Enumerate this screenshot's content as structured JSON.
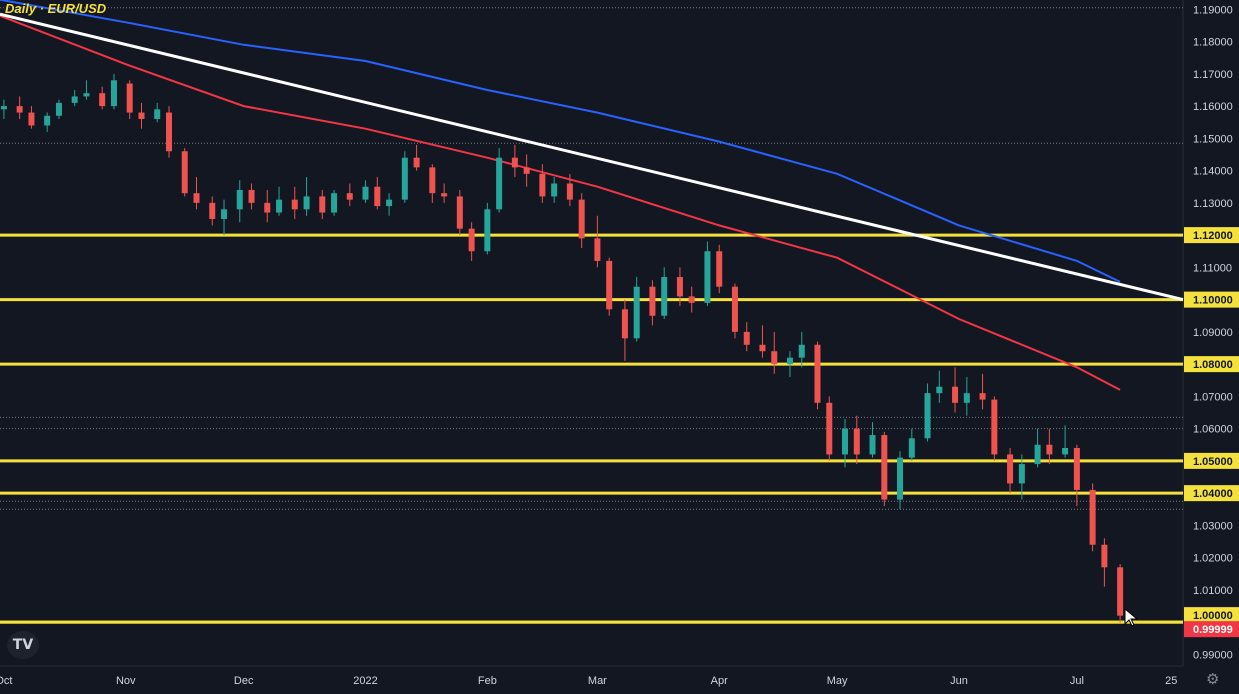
{
  "title": "Daily · EUR/USD",
  "icons": {
    "logo": "tradingview-logo-icon",
    "settings": "gear-icon",
    "cursor": "mouse-pointer-icon"
  },
  "logo_text": "TV",
  "settings_glyph": "⚙",
  "colors": {
    "background": "#131722",
    "up": "#26a69a",
    "down": "#ef5350",
    "ma_blue": "#2962ff",
    "ma_red": "#f23645",
    "trendline": "#ffffff",
    "level": "#f5e13b",
    "axis_text": "#d1d4dc",
    "price_tag": "#f23645"
  },
  "chart_data": {
    "type": "candlestick",
    "title": "Daily · EUR/USD",
    "ylim": [
      0.9864,
      1.1929
    ],
    "y_tick_labels": [
      "1.19000",
      "1.18000",
      "1.17000",
      "1.16000",
      "1.15000",
      "1.14000",
      "1.13000",
      "1.11000",
      "1.09000",
      "1.07000",
      "1.06000",
      "1.03000",
      "1.02000",
      "1.01000",
      "0.99000"
    ],
    "y_ticks": [
      1.19,
      1.18,
      1.17,
      1.16,
      1.15,
      1.14,
      1.13,
      1.11,
      1.09,
      1.07,
      1.06,
      1.03,
      1.02,
      1.01,
      0.99
    ],
    "x_tick_labels": [
      "Oct",
      "Nov",
      "Dec",
      "2022",
      "Feb",
      "Mar",
      "Apr",
      "May",
      "Jun",
      "Jul",
      "25"
    ],
    "x_ticks": [
      "2021-10-01",
      "2021-11-01",
      "2021-12-01",
      "2022-01-01",
      "2022-02-01",
      "2022-03-01",
      "2022-04-01",
      "2022-05-01",
      "2022-06-01",
      "2022-07-01",
      "2022-07-25"
    ],
    "x_range": [
      "2021-09-30",
      "2022-07-28"
    ],
    "horizontal_levels": [
      {
        "price": 1.12,
        "label": "1.12000"
      },
      {
        "price": 1.1,
        "label": "1.10000"
      },
      {
        "price": 1.08,
        "label": "1.08000"
      },
      {
        "price": 1.05,
        "label": "1.05000"
      },
      {
        "price": 1.04,
        "label": "1.04000"
      },
      {
        "price": 1.0,
        "label": "1.00000"
      },
      {
        "price": 0.99999,
        "label": "0.99999"
      }
    ],
    "last_price": {
      "price": 0.99999,
      "label": "0.99999"
    },
    "dotted_levels": [
      1.1905,
      1.1485,
      1.0635,
      1.06,
      1.0375,
      1.035
    ],
    "trendline": {
      "points": [
        [
          "2021-09-30",
          1.1885
        ],
        [
          "2022-07-28",
          1.1
        ]
      ]
    },
    "ma_long": {
      "points": [
        [
          "2021-09-30",
          1.193
        ],
        [
          "2021-11-01",
          1.186
        ],
        [
          "2021-12-01",
          1.179
        ],
        [
          "2022-01-01",
          1.174
        ],
        [
          "2022-02-01",
          1.165
        ],
        [
          "2022-03-01",
          1.158
        ],
        [
          "2022-04-01",
          1.149
        ],
        [
          "2022-05-01",
          1.139
        ],
        [
          "2022-06-01",
          1.123
        ],
        [
          "2022-07-01",
          1.112
        ],
        [
          "2022-07-12",
          1.1055
        ]
      ]
    },
    "ma_short": {
      "points": [
        [
          "2021-09-30",
          1.188
        ],
        [
          "2021-11-01",
          1.173
        ],
        [
          "2021-12-01",
          1.16
        ],
        [
          "2022-01-01",
          1.153
        ],
        [
          "2022-02-01",
          1.144
        ],
        [
          "2022-03-01",
          1.135
        ],
        [
          "2022-04-01",
          1.123
        ],
        [
          "2022-05-01",
          1.113
        ],
        [
          "2022-06-01",
          1.094
        ],
        [
          "2022-07-01",
          1.079
        ],
        [
          "2022-07-12",
          1.072
        ]
      ]
    },
    "candles": [
      [
        "2021-10-01",
        1.159,
        1.162,
        1.156,
        1.16
      ],
      [
        "2021-10-05",
        1.16,
        1.163,
        1.156,
        1.158
      ],
      [
        "2021-10-08",
        1.158,
        1.16,
        1.153,
        1.154
      ],
      [
        "2021-10-12",
        1.154,
        1.158,
        1.152,
        1.157
      ],
      [
        "2021-10-15",
        1.157,
        1.162,
        1.156,
        1.161
      ],
      [
        "2021-10-19",
        1.161,
        1.165,
        1.16,
        1.163
      ],
      [
        "2021-10-22",
        1.163,
        1.168,
        1.162,
        1.164
      ],
      [
        "2021-10-26",
        1.164,
        1.166,
        1.159,
        1.16
      ],
      [
        "2021-10-29",
        1.16,
        1.17,
        1.159,
        1.168
      ],
      [
        "2021-11-02",
        1.167,
        1.168,
        1.156,
        1.158
      ],
      [
        "2021-11-05",
        1.158,
        1.161,
        1.153,
        1.156
      ],
      [
        "2021-11-09",
        1.156,
        1.161,
        1.155,
        1.159
      ],
      [
        "2021-11-12",
        1.158,
        1.16,
        1.144,
        1.146
      ],
      [
        "2021-11-16",
        1.146,
        1.147,
        1.132,
        1.133
      ],
      [
        "2021-11-19",
        1.133,
        1.138,
        1.128,
        1.13
      ],
      [
        "2021-11-23",
        1.13,
        1.132,
        1.123,
        1.125
      ],
      [
        "2021-11-26",
        1.125,
        1.131,
        1.12,
        1.128
      ],
      [
        "2021-11-30",
        1.128,
        1.137,
        1.124,
        1.134
      ],
      [
        "2021-12-03",
        1.134,
        1.136,
        1.128,
        1.13
      ],
      [
        "2021-12-07",
        1.13,
        1.134,
        1.124,
        1.127
      ],
      [
        "2021-12-10",
        1.127,
        1.135,
        1.126,
        1.131
      ],
      [
        "2021-12-14",
        1.131,
        1.135,
        1.125,
        1.128
      ],
      [
        "2021-12-17",
        1.128,
        1.138,
        1.126,
        1.132
      ],
      [
        "2021-12-21",
        1.132,
        1.134,
        1.125,
        1.127
      ],
      [
        "2021-12-24",
        1.127,
        1.134,
        1.126,
        1.133
      ],
      [
        "2021-12-28",
        1.133,
        1.136,
        1.129,
        1.131
      ],
      [
        "2022-01-01",
        1.131,
        1.137,
        1.13,
        1.135
      ],
      [
        "2022-01-04",
        1.135,
        1.138,
        1.128,
        1.129
      ],
      [
        "2022-01-07",
        1.129,
        1.133,
        1.126,
        1.131
      ],
      [
        "2022-01-11",
        1.131,
        1.146,
        1.13,
        1.144
      ],
      [
        "2022-01-14",
        1.144,
        1.148,
        1.14,
        1.141
      ],
      [
        "2022-01-18",
        1.141,
        1.142,
        1.13,
        1.133
      ],
      [
        "2022-01-21",
        1.133,
        1.136,
        1.13,
        1.132
      ],
      [
        "2022-01-25",
        1.132,
        1.134,
        1.12,
        1.122
      ],
      [
        "2022-01-28",
        1.122,
        1.124,
        1.112,
        1.115
      ],
      [
        "2022-02-01",
        1.115,
        1.13,
        1.114,
        1.128
      ],
      [
        "2022-02-04",
        1.128,
        1.147,
        1.127,
        1.144
      ],
      [
        "2022-02-08",
        1.144,
        1.148,
        1.138,
        1.141
      ],
      [
        "2022-02-11",
        1.141,
        1.145,
        1.135,
        1.139
      ],
      [
        "2022-02-15",
        1.139,
        1.142,
        1.13,
        1.132
      ],
      [
        "2022-02-18",
        1.132,
        1.138,
        1.13,
        1.136
      ],
      [
        "2022-02-22",
        1.136,
        1.139,
        1.129,
        1.131
      ],
      [
        "2022-02-25",
        1.131,
        1.133,
        1.116,
        1.119
      ],
      [
        "2022-03-01",
        1.119,
        1.126,
        1.11,
        1.112
      ],
      [
        "2022-03-04",
        1.112,
        1.113,
        1.095,
        1.097
      ],
      [
        "2022-03-08",
        1.097,
        1.1,
        1.081,
        1.088
      ],
      [
        "2022-03-11",
        1.088,
        1.107,
        1.087,
        1.104
      ],
      [
        "2022-03-15",
        1.104,
        1.106,
        1.092,
        1.095
      ],
      [
        "2022-03-18",
        1.095,
        1.11,
        1.094,
        1.107
      ],
      [
        "2022-03-22",
        1.107,
        1.11,
        1.098,
        1.101
      ],
      [
        "2022-03-25",
        1.101,
        1.104,
        1.096,
        1.099
      ],
      [
        "2022-03-29",
        1.099,
        1.118,
        1.098,
        1.115
      ],
      [
        "2022-04-01",
        1.115,
        1.117,
        1.102,
        1.104
      ],
      [
        "2022-04-05",
        1.104,
        1.105,
        1.088,
        1.09
      ],
      [
        "2022-04-08",
        1.09,
        1.093,
        1.084,
        1.086
      ],
      [
        "2022-04-12",
        1.086,
        1.092,
        1.082,
        1.084
      ],
      [
        "2022-04-15",
        1.084,
        1.09,
        1.077,
        1.08
      ],
      [
        "2022-04-19",
        1.08,
        1.084,
        1.076,
        1.082
      ],
      [
        "2022-04-22",
        1.082,
        1.09,
        1.079,
        1.086
      ],
      [
        "2022-04-26",
        1.086,
        1.087,
        1.066,
        1.068
      ],
      [
        "2022-04-29",
        1.068,
        1.07,
        1.05,
        1.052
      ],
      [
        "2022-05-03",
        1.052,
        1.063,
        1.048,
        1.06
      ],
      [
        "2022-05-06",
        1.06,
        1.064,
        1.049,
        1.052
      ],
      [
        "2022-05-10",
        1.052,
        1.062,
        1.051,
        1.058
      ],
      [
        "2022-05-13",
        1.058,
        1.059,
        1.036,
        1.038
      ],
      [
        "2022-05-17",
        1.038,
        1.053,
        1.035,
        1.051
      ],
      [
        "2022-05-20",
        1.051,
        1.06,
        1.05,
        1.057
      ],
      [
        "2022-05-24",
        1.057,
        1.074,
        1.056,
        1.071
      ],
      [
        "2022-05-27",
        1.071,
        1.078,
        1.068,
        1.073
      ],
      [
        "2022-05-31",
        1.073,
        1.079,
        1.065,
        1.068
      ],
      [
        "2022-06-03",
        1.068,
        1.076,
        1.064,
        1.071
      ],
      [
        "2022-06-07",
        1.071,
        1.077,
        1.066,
        1.069
      ],
      [
        "2022-06-10",
        1.069,
        1.07,
        1.05,
        1.052
      ],
      [
        "2022-06-14",
        1.052,
        1.054,
        1.04,
        1.043
      ],
      [
        "2022-06-17",
        1.043,
        1.052,
        1.038,
        1.049
      ],
      [
        "2022-06-21",
        1.049,
        1.06,
        1.048,
        1.055
      ],
      [
        "2022-06-24",
        1.055,
        1.06,
        1.049,
        1.052
      ],
      [
        "2022-06-28",
        1.052,
        1.061,
        1.051,
        1.054
      ],
      [
        "2022-07-01",
        1.054,
        1.055,
        1.036,
        1.041
      ],
      [
        "2022-07-05",
        1.041,
        1.043,
        1.022,
        1.024
      ],
      [
        "2022-07-08",
        1.024,
        1.026,
        1.011,
        1.017
      ],
      [
        "2022-07-12",
        1.017,
        1.018,
        0.9999,
        1.002
      ]
    ]
  }
}
